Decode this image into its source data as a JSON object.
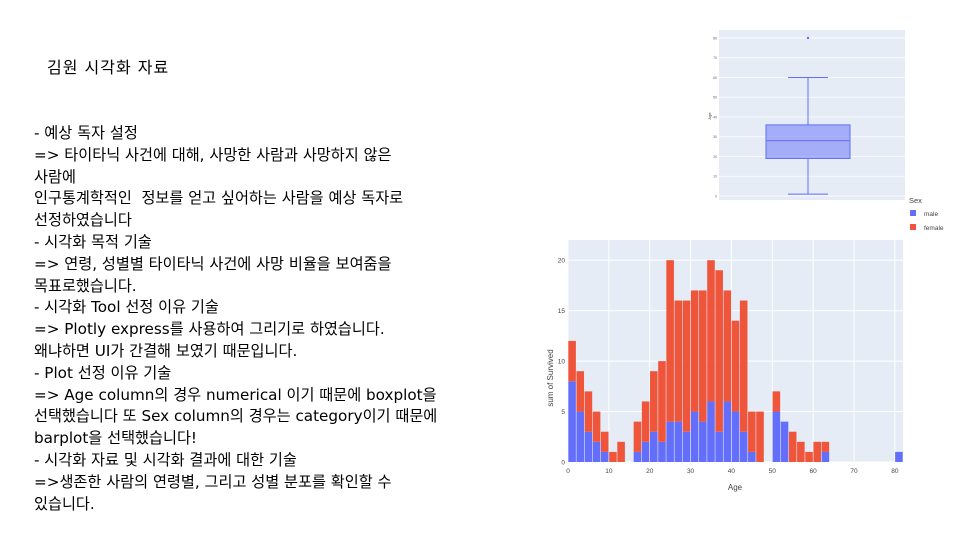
{
  "slide": {
    "title": "김원 시각화 자료",
    "lines": [
      "- 예상 독자 설정",
      "=> 타이타닉 사건에 대해, 사망한 사람과 사망하지 않은",
      "사람에",
      "인구통계학적인  정보를 얻고 싶어하는 사람을 예상 독자로",
      "선정하였습니다",
      "- 시각화 목적 기술",
      "=> 연령, 성별별 타이타닉 사건에 사망 비율을 보여줌을",
      "목표로했습니다.",
      "- 시각화 Tool 선정 이유 기술",
      "=> Plotly express를 사용하여 그리기로 하였습니다.",
      "왜냐하면 UI가 간결해 보였기 때문입니다.",
      "- Plot 선정 이유 기술",
      "=> Age column의 경우 numerical 이기 때문에 boxplot을",
      "선택했습니다 또 Sex column의 경우는 category이기 때문에",
      "barplot을 선택했습니다!",
      "- 시각화 자료 및 시각화 결과에 대한 기술",
      "=>생존한 사람의 연령별, 그리고 성별 분포를 확인할 수",
      "있습니다."
    ]
  },
  "chart_data": [
    {
      "type": "bar",
      "barmode": "stack",
      "xlabel": "Age",
      "ylabel": "sum of Survived",
      "xlim": [
        0,
        82
      ],
      "ylim": [
        0,
        22
      ],
      "x_ticks": [
        0,
        10,
        20,
        30,
        40,
        50,
        60,
        70,
        80
      ],
      "y_ticks": [
        0,
        5,
        10,
        15,
        20
      ],
      "legend": {
        "title": "Sex",
        "placement": "right"
      },
      "bin_width": 2,
      "bin_starts": [
        0,
        2,
        4,
        6,
        8,
        10,
        12,
        14,
        16,
        18,
        20,
        22,
        24,
        26,
        28,
        30,
        32,
        34,
        36,
        38,
        40,
        42,
        44,
        46,
        48,
        50,
        52,
        54,
        56,
        58,
        60,
        62,
        64,
        66,
        68,
        70,
        72,
        74,
        76,
        78,
        80
      ],
      "series": [
        {
          "name": "male",
          "color": "#636efa",
          "values": [
            8,
            5,
            3,
            2,
            1,
            0,
            0,
            0,
            1,
            2,
            3,
            2,
            4,
            4,
            3,
            5,
            4,
            6,
            3,
            6,
            5,
            3,
            1,
            0,
            0,
            5,
            4,
            0,
            0,
            0,
            0,
            1,
            0,
            0,
            0,
            0,
            0,
            0,
            0,
            0,
            1
          ]
        },
        {
          "name": "female",
          "color": "#ef553b",
          "values": [
            4,
            4,
            4,
            3,
            2,
            1,
            2,
            0,
            3,
            4,
            6,
            8,
            16,
            12,
            13,
            12,
            13,
            14,
            16,
            11,
            9,
            13,
            4,
            5,
            0,
            2,
            0,
            3,
            2,
            1,
            2,
            1,
            0,
            0,
            0,
            0,
            0,
            0,
            0,
            0,
            0
          ]
        }
      ]
    },
    {
      "type": "box",
      "ylabel": "Age",
      "min": 0.92,
      "q1": 19,
      "median": 28,
      "q3": 36,
      "upper_fence": 60,
      "outliers": [
        80
      ],
      "color": "#636efa"
    }
  ]
}
